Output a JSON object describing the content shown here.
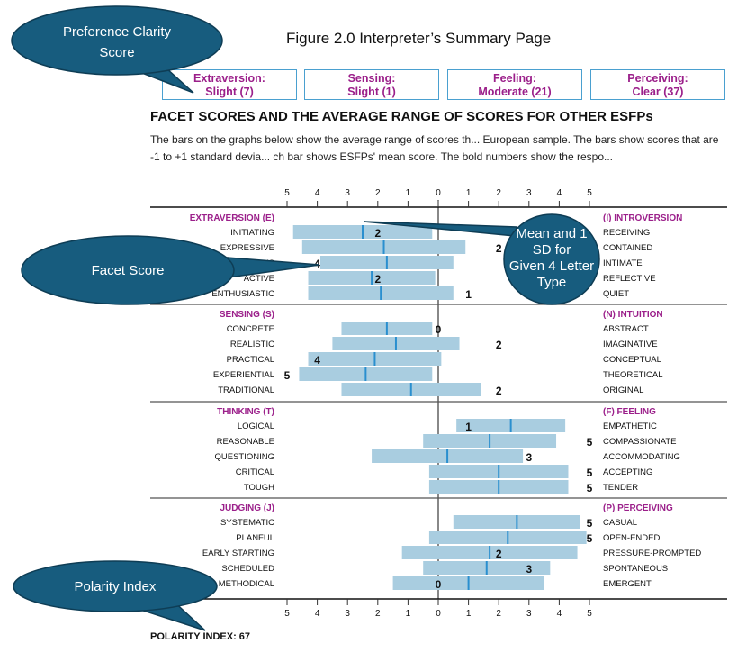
{
  "figure_title": "Figure 2.0 Interpreter’s Summary Page",
  "preference_clarity": [
    {
      "dimension": "Extraversion:",
      "value": "Slight (7)"
    },
    {
      "dimension": "Sensing:",
      "value": "Slight (1)"
    },
    {
      "dimension": "Feeling:",
      "value": "Moderate (21)"
    },
    {
      "dimension": "Perceiving:",
      "value": "Clear (37)"
    }
  ],
  "heading": "FACET SCORES AND THE AVERAGE RANGE OF SCORES FOR OTHER ESFPs",
  "description": "The bars on the graphs below show the average range of scores th... European sample. The bars show scores that are -1 to +1 standard devia... ch bar shows ESFPs' mean score. The bold numbers show the respo...",
  "axis_ticks": [
    "5",
    "4",
    "3",
    "2",
    "1",
    "0",
    "1",
    "2",
    "3",
    "4",
    "5"
  ],
  "colors": {
    "bar": "#a9cde0",
    "mean": "#2a8fcf",
    "category": "#9b1f8a",
    "callout": "#175c7e"
  },
  "chart_data": {
    "type": "bar",
    "xlim": [
      -5,
      5
    ],
    "groups": [
      {
        "left": "EXTRAVERSION (E)",
        "right": "(I) INTROVERSION",
        "facets": [
          {
            "left": "INITIATING",
            "right": "RECEIVING",
            "range": [
              -4.8,
              -0.2
            ],
            "mean": -2.5,
            "score": "2",
            "score_pos": -2
          },
          {
            "left": "EXPRESSIVE",
            "right": "CONTAINED",
            "range": [
              -4.5,
              0.9
            ],
            "mean": -1.8,
            "score": "2",
            "score_pos": 2
          },
          {
            "left": "GREGARIOUS",
            "right": "INTIMATE",
            "range": [
              -3.9,
              0.5
            ],
            "mean": -1.7,
            "score": "4",
            "score_pos": -4
          },
          {
            "left": "ACTIVE",
            "right": "REFLECTIVE",
            "range": [
              -4.3,
              -0.1
            ],
            "mean": -2.2,
            "score": "2",
            "score_pos": -2
          },
          {
            "left": "ENTHUSIASTIC",
            "right": "QUIET",
            "range": [
              -4.3,
              0.5
            ],
            "mean": -1.9,
            "score": "1",
            "score_pos": 1
          }
        ]
      },
      {
        "left": "SENSING (S)",
        "right": "(N) INTUITION",
        "facets": [
          {
            "left": "CONCRETE",
            "right": "ABSTRACT",
            "range": [
              -3.2,
              -0.2
            ],
            "mean": -1.7,
            "score": "0",
            "score_pos": 0
          },
          {
            "left": "REALISTIC",
            "right": "IMAGINATIVE",
            "range": [
              -3.5,
              0.7
            ],
            "mean": -1.4,
            "score": "2",
            "score_pos": 2
          },
          {
            "left": "PRACTICAL",
            "right": "CONCEPTUAL",
            "range": [
              -4.3,
              0.1
            ],
            "mean": -2.1,
            "score": "4",
            "score_pos": -4
          },
          {
            "left": "EXPERIENTIAL",
            "right": "THEORETICAL",
            "range": [
              -4.6,
              -0.2
            ],
            "mean": -2.4,
            "score": "5",
            "score_pos": -5
          },
          {
            "left": "TRADITIONAL",
            "right": "ORIGINAL",
            "range": [
              -3.2,
              1.4
            ],
            "mean": -0.9,
            "score": "2",
            "score_pos": 2
          }
        ]
      },
      {
        "left": "THINKING (T)",
        "right": "(F) FEELING",
        "facets": [
          {
            "left": "LOGICAL",
            "right": "EMPATHETIC",
            "range": [
              0.6,
              4.2
            ],
            "mean": 2.4,
            "score": "1",
            "score_pos": 1
          },
          {
            "left": "REASONABLE",
            "right": "COMPASSIONATE",
            "range": [
              -0.5,
              3.9
            ],
            "mean": 1.7,
            "score": "5",
            "score_pos": 5
          },
          {
            "left": "QUESTIONING",
            "right": "ACCOMMODATING",
            "range": [
              -2.2,
              2.8
            ],
            "mean": 0.3,
            "score": "3",
            "score_pos": 3
          },
          {
            "left": "CRITICAL",
            "right": "ACCEPTING",
            "range": [
              -0.3,
              4.3
            ],
            "mean": 2.0,
            "score": "5",
            "score_pos": 5
          },
          {
            "left": "TOUGH",
            "right": "TENDER",
            "range": [
              -0.3,
              4.3
            ],
            "mean": 2.0,
            "score": "5",
            "score_pos": 5
          }
        ]
      },
      {
        "left": "JUDGING (J)",
        "right": "(P) PERCEIVING",
        "facets": [
          {
            "left": "SYSTEMATIC",
            "right": "CASUAL",
            "range": [
              0.5,
              4.7
            ],
            "mean": 2.6,
            "score": "5",
            "score_pos": 5
          },
          {
            "left": "PLANFUL",
            "right": "OPEN-ENDED",
            "range": [
              -0.3,
              4.9
            ],
            "mean": 2.3,
            "score": "5",
            "score_pos": 5
          },
          {
            "left": "EARLY STARTING",
            "right": "PRESSURE-PROMPTED",
            "range": [
              -1.2,
              4.6
            ],
            "mean": 1.7,
            "score": "2",
            "score_pos": 2
          },
          {
            "left": "SCHEDULED",
            "right": "SPONTANEOUS",
            "range": [
              -0.5,
              3.7
            ],
            "mean": 1.6,
            "score": "3",
            "score_pos": 3
          },
          {
            "left": "METHODICAL",
            "right": "EMERGENT",
            "range": [
              -1.5,
              3.5
            ],
            "mean": 1.0,
            "score": "0",
            "score_pos": 0
          }
        ]
      }
    ]
  },
  "polarity_index": "POLARITY INDEX: 67",
  "callouts": {
    "preference_clarity": [
      "Preference Clarity",
      "Score"
    ],
    "mean_sd": [
      "Mean and 1 SD for",
      "Given 4 Letter Type"
    ],
    "facet_score": [
      "Facet Score"
    ],
    "polarity_index": [
      "Polarity Index"
    ]
  }
}
